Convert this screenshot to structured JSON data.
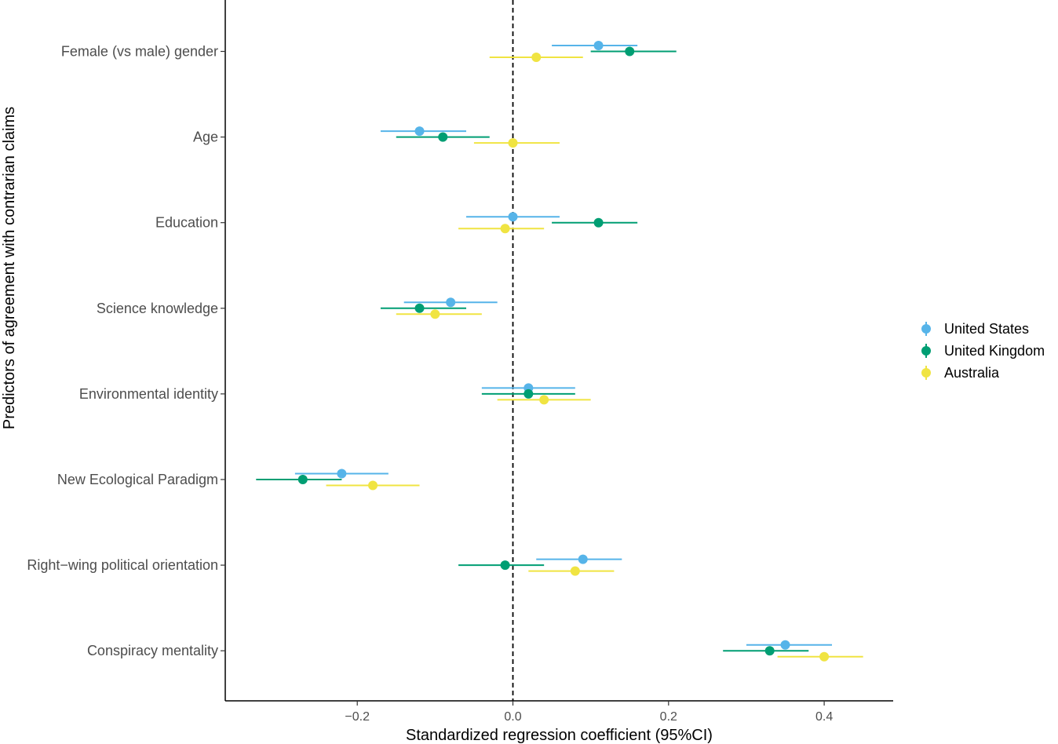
{
  "chart_data": {
    "type": "forest",
    "xlabel": "Standardized regression coefficient (95%CI)",
    "ylabel": "Predictors of agreement with contrarian claims",
    "xlim": [
      -0.37,
      0.49
    ],
    "xticks": [
      -0.2,
      0.0,
      0.2,
      0.4
    ],
    "xtick_labels": [
      "−0.2",
      "0.0",
      "0.2",
      "0.4"
    ],
    "reference_line": 0,
    "categories": [
      "Female (vs male) gender",
      "Age",
      "Education",
      "Science knowledge",
      "Environmental identity",
      "New Ecological Paradigm",
      "Right−wing political orientation",
      "Conspiracy mentality"
    ],
    "series": [
      {
        "name": "United States",
        "color": "#56B4E9",
        "estimates": [
          0.11,
          -0.12,
          0.0,
          -0.08,
          0.02,
          -0.22,
          0.09,
          0.35
        ],
        "lower": [
          0.05,
          -0.17,
          -0.06,
          -0.14,
          -0.04,
          -0.28,
          0.03,
          0.3
        ],
        "upper": [
          0.16,
          -0.06,
          0.06,
          -0.02,
          0.08,
          -0.16,
          0.14,
          0.41
        ]
      },
      {
        "name": "United Kingdom",
        "color": "#009E73",
        "estimates": [
          0.15,
          -0.09,
          0.11,
          -0.12,
          0.02,
          -0.27,
          -0.01,
          0.33
        ],
        "lower": [
          0.1,
          -0.15,
          0.05,
          -0.17,
          -0.04,
          -0.33,
          -0.07,
          0.27
        ],
        "upper": [
          0.21,
          -0.03,
          0.16,
          -0.06,
          0.08,
          -0.22,
          0.04,
          0.38
        ]
      },
      {
        "name": "Australia",
        "color": "#F0E442",
        "estimates": [
          0.03,
          0.0,
          -0.01,
          -0.1,
          0.04,
          -0.18,
          0.08,
          0.4
        ],
        "lower": [
          -0.03,
          -0.05,
          -0.07,
          -0.15,
          -0.02,
          -0.24,
          0.02,
          0.34
        ],
        "upper": [
          0.09,
          0.06,
          0.04,
          -0.04,
          0.1,
          -0.12,
          0.13,
          0.45
        ]
      }
    ],
    "legend": {
      "position": "right"
    }
  }
}
